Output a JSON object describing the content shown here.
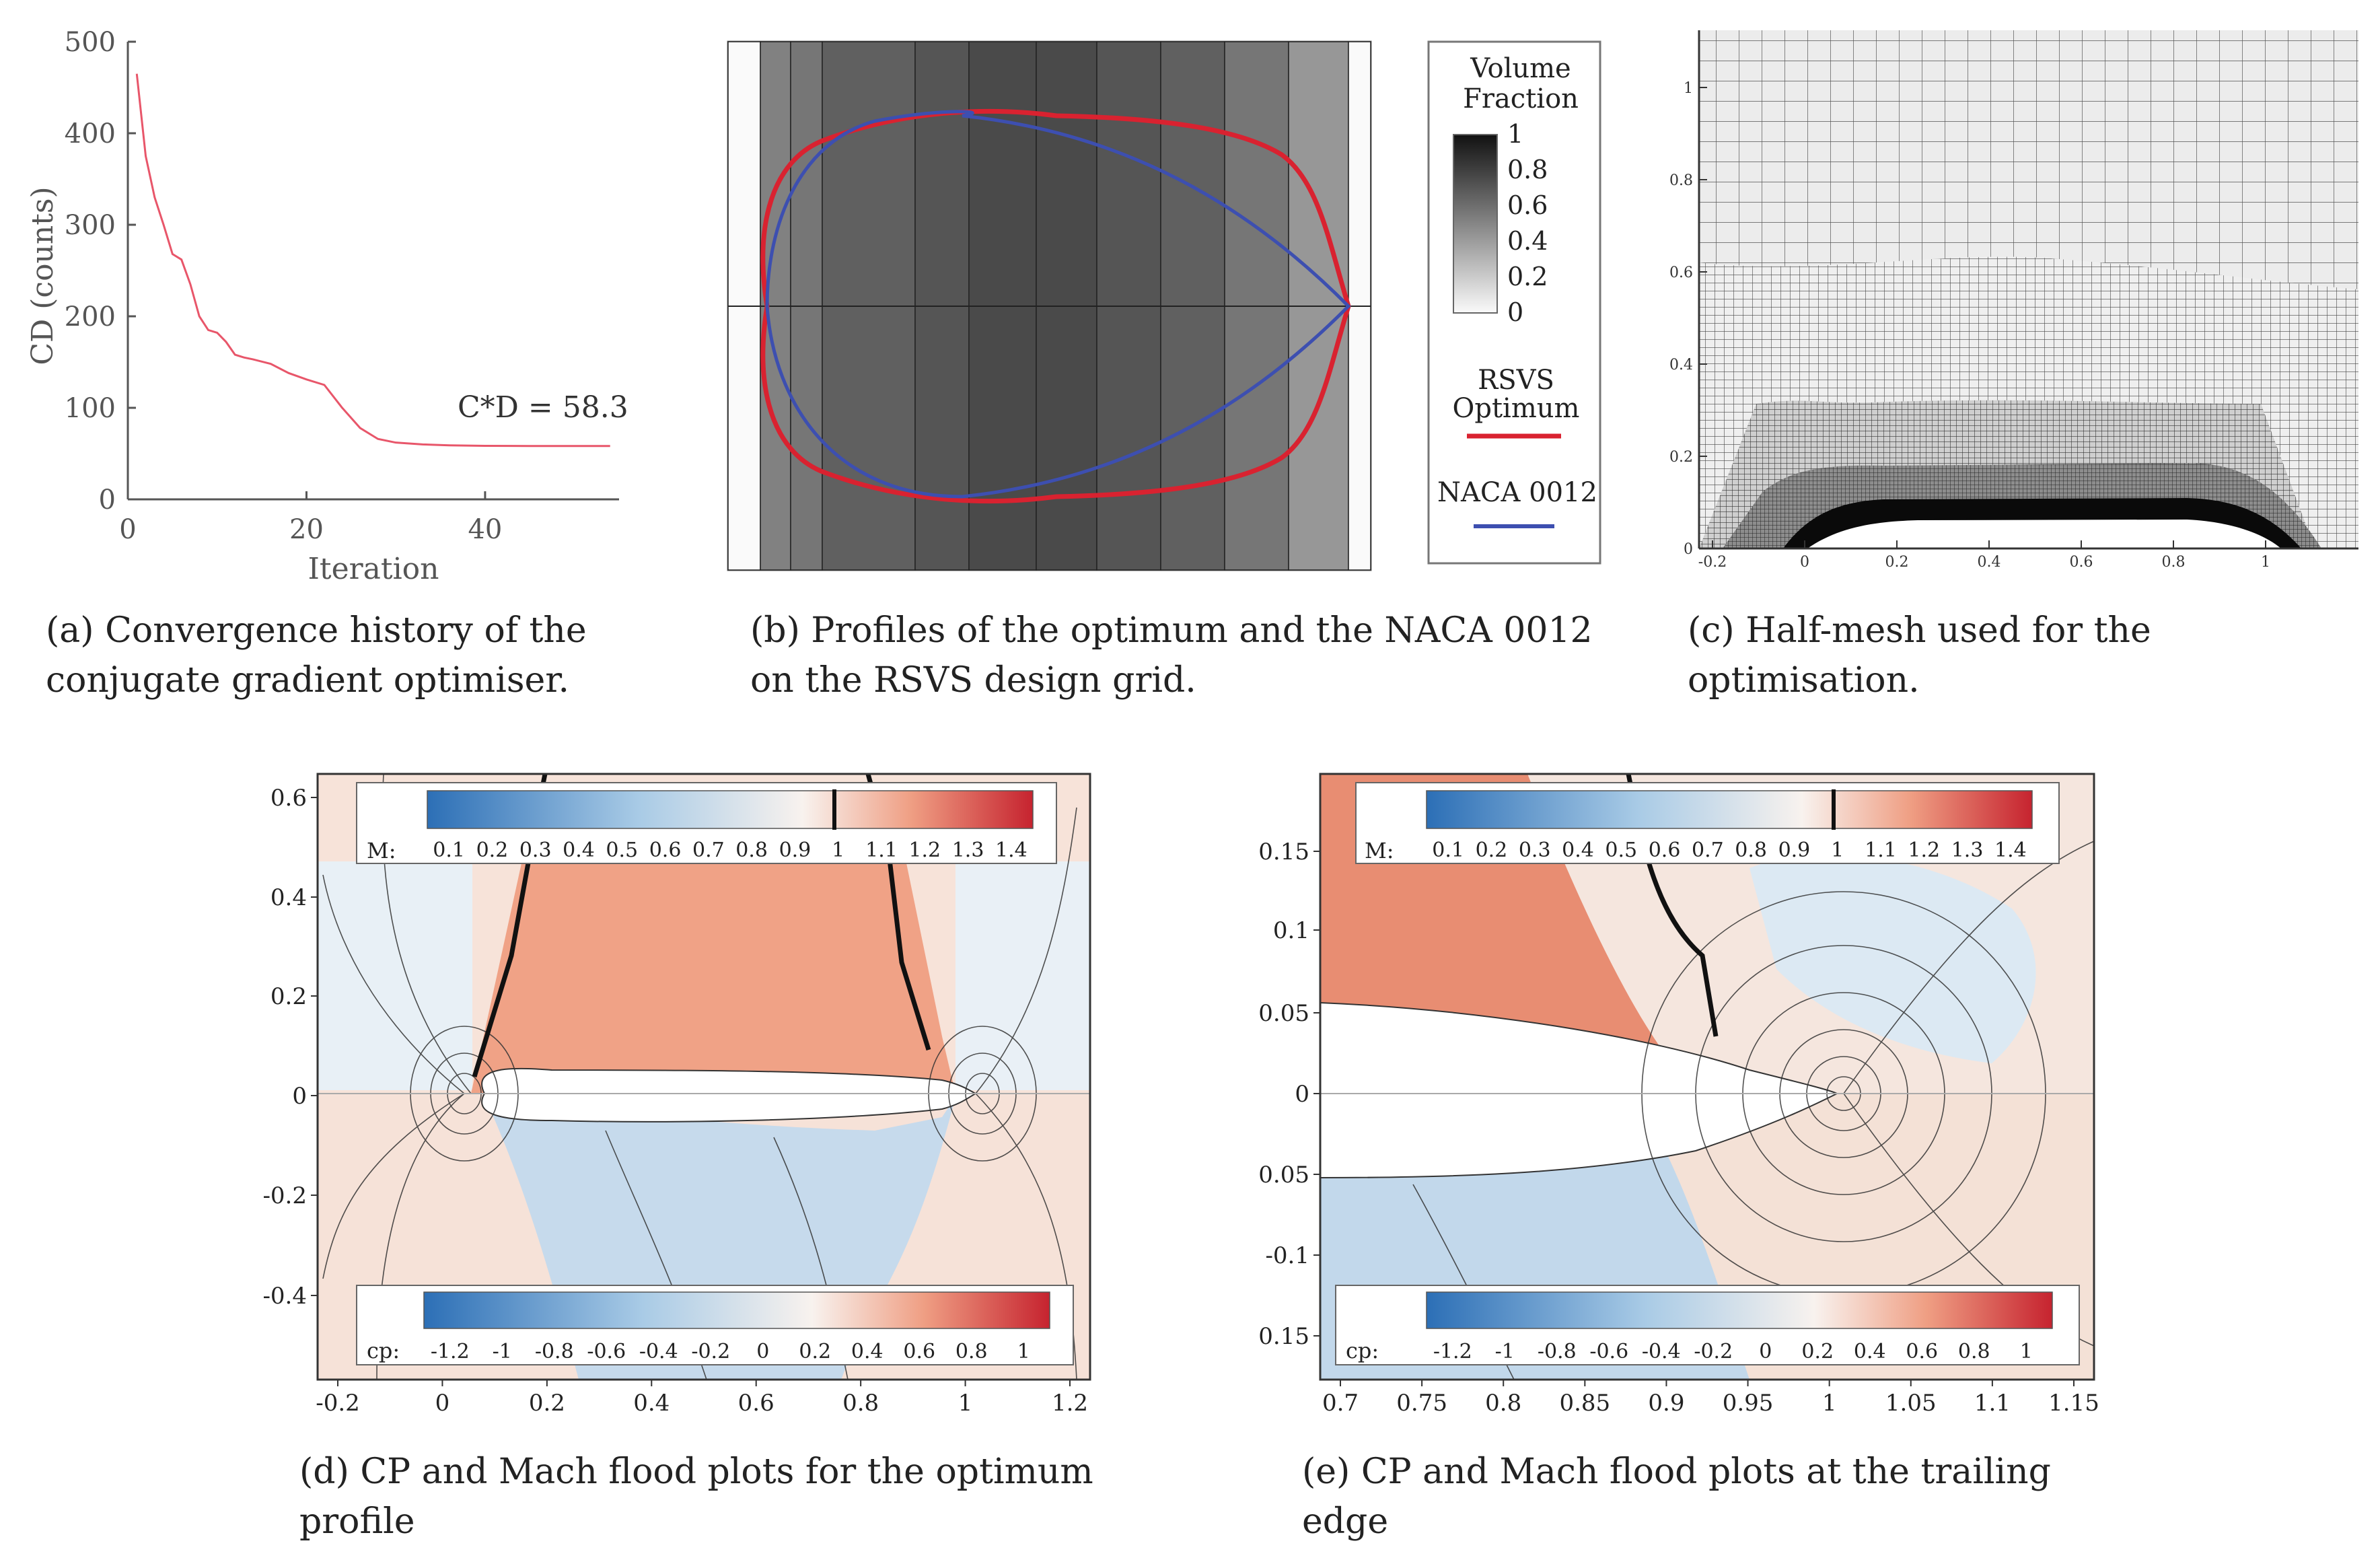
{
  "captions": {
    "a": "(a) Convergence history of the conjugate gradient optimiser.",
    "b": "(b) Profiles of the optimum and the NACA 0012 on the RSVS design grid.",
    "c": "(c) Half-mesh used for the optimisation.",
    "d": "(d) CP and Mach flood plots for the optimum profile",
    "e": "(e) CP and Mach flood plots at the trailing edge"
  },
  "chart_data": [
    {
      "id": "a",
      "type": "line",
      "xlabel": "Iteration",
      "ylabel": "CD (counts)",
      "xlim": [
        0,
        55
      ],
      "ylim": [
        0,
        500
      ],
      "xticks": [
        "0",
        "20",
        "40"
      ],
      "yticks": [
        "0",
        "100",
        "200",
        "300",
        "400",
        "500"
      ],
      "annotation": "C*D = 58.3",
      "series": [
        {
          "color": "#e8566a",
          "x": [
            1,
            2,
            3,
            4,
            5,
            6,
            7,
            8,
            9,
            10,
            11,
            12,
            13,
            14,
            16,
            18,
            20,
            22,
            24,
            26,
            28,
            30,
            33,
            36,
            40,
            45,
            50,
            54
          ],
          "y": [
            465,
            375,
            330,
            300,
            268,
            262,
            235,
            200,
            185,
            182,
            172,
            158,
            155,
            153,
            148,
            138,
            131,
            125,
            100,
            78,
            66,
            62,
            60,
            59,
            58.5,
            58.3,
            58.3,
            58.3
          ]
        }
      ]
    },
    {
      "id": "b",
      "type": "heatmap",
      "legend_title": "Volume Fraction",
      "colorbar_ticks": [
        "1",
        "0.8",
        "0.6",
        "0.4",
        "0.2",
        "0"
      ],
      "columns": [
        0,
        0.55,
        0.6,
        0.7,
        0.75,
        0.8,
        0.8,
        0.75,
        0.7,
        0.6,
        0.45,
        0
      ],
      "legend_entries": [
        {
          "label": "RSVS Optimum",
          "color": "#d92230"
        },
        {
          "label": "NACA 0012",
          "color": "#3d4fb0"
        }
      ]
    },
    {
      "id": "c",
      "type": "other",
      "xticks": [
        "-0.2",
        "0",
        "0.2",
        "0.4",
        "0.6",
        "0.8",
        "1"
      ],
      "yticks": [
        "0",
        "0.2",
        "0.4",
        "0.6",
        "0.8",
        "1"
      ]
    },
    {
      "id": "d",
      "type": "heatmap",
      "xticks": [
        "-0.2",
        "0",
        "0.2",
        "0.4",
        "0.6",
        "0.8",
        "1",
        "1.2"
      ],
      "yticks": [
        "0.6",
        "0.4",
        "0.2",
        "0",
        "-0.2",
        "-0.4"
      ],
      "mach_label": "M:",
      "mach_ticks": [
        "0.1",
        "0.2",
        "0.3",
        "0.4",
        "0.5",
        "0.6",
        "0.7",
        "0.8",
        "0.9",
        "1",
        "1.1",
        "1.2",
        "1.3",
        "1.4"
      ],
      "cp_label": "cp:",
      "cp_ticks": [
        "-1.2",
        "-1",
        "-0.8",
        "-0.6",
        "-0.4",
        "-0.2",
        "0",
        "0.2",
        "0.4",
        "0.6",
        "0.8",
        "1"
      ]
    },
    {
      "id": "e",
      "type": "heatmap",
      "xticks": [
        "0.7",
        "0.75",
        "0.8",
        "0.85",
        "0.9",
        "0.95",
        "1",
        "1.05",
        "1.1",
        "1.15"
      ],
      "yticks": [
        "0.15",
        "0.1",
        "0.05",
        "0",
        "0.05",
        "-0.1",
        "0.15"
      ],
      "mach_label": "M:",
      "mach_ticks": [
        "0.1",
        "0.2",
        "0.3",
        "0.4",
        "0.5",
        "0.6",
        "0.7",
        "0.8",
        "0.9",
        "1",
        "1.1",
        "1.2",
        "1.3",
        "1.4"
      ],
      "cp_label": "cp:",
      "cp_ticks": [
        "-1.2",
        "-1",
        "-0.8",
        "-0.6",
        "-0.4",
        "-0.2",
        "0",
        "0.2",
        "0.4",
        "0.6",
        "0.8",
        "1"
      ]
    }
  ]
}
